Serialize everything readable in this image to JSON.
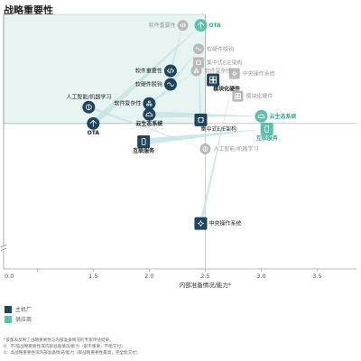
{
  "title": "战略重要性",
  "chart_data": {
    "type": "scatter",
    "title": "战略重要性",
    "xlabel": "内部准备情况/能力*",
    "ylabel": "",
    "xlim": [
      0.7,
      3.85
    ],
    "ylim": [
      0.4,
      3.2
    ],
    "x_ticks": [
      "0.0",
      "1.5",
      "2.0",
      "2.5",
      "3.0",
      "3.5"
    ],
    "x_tick_values": [
      1.0,
      1.5,
      2.0,
      2.5,
      3.0,
      3.5
    ],
    "grid": false,
    "axis_break": true,
    "quadrant": {
      "x_max": 2.5,
      "y_min": 2.0,
      "color": "#e7f4f1"
    },
    "legend_position": "bottom-left",
    "colors": {
      "oem": "#20455a",
      "supplier": "#5dbfae",
      "faded": "#b9b9b9",
      "arrow": "#c7e3e4"
    },
    "series": [
      {
        "name": "主机厂",
        "color": "#20455a",
        "points": [
          {
            "label": "OTA",
            "x": 1.5,
            "y": 2.0,
            "icon": "ota"
          },
          {
            "label": "云生态系统",
            "x": 2.0,
            "y": 2.1,
            "icon": "cloud"
          },
          {
            "label": "互联服务",
            "x": 1.95,
            "y": 1.8,
            "icon": "phone"
          },
          {
            "label": "模块化硬件",
            "x": 2.57,
            "y": 2.48,
            "icon": "module"
          },
          {
            "label": "集中式E/E架构",
            "x": 2.46,
            "y": 2.04,
            "icon": "chip"
          },
          {
            "label": "软件重要性",
            "x": 2.19,
            "y": 2.58,
            "icon": "code"
          },
          {
            "label": "软硬件脱钩",
            "x": 2.19,
            "y": 2.43,
            "icon": "decouple"
          },
          {
            "label": "人工智能/机器学习",
            "x": 1.46,
            "y": 2.18,
            "icon": "brain"
          },
          {
            "label": "软件复杂性",
            "x": 2.0,
            "y": 2.22,
            "icon": "complexity"
          },
          {
            "label": "中央操作系统",
            "x": 2.46,
            "y": 0.9,
            "icon": "os"
          }
        ]
      },
      {
        "name": "供应商",
        "color": "#5dbfae",
        "points": [
          {
            "label": "OTA",
            "x": 2.46,
            "y": 3.08,
            "icon": "ota"
          },
          {
            "label": "云生态系统",
            "x": 3.0,
            "y": 2.08,
            "icon": "cloud"
          },
          {
            "label": "互联服务",
            "x": 3.05,
            "y": 1.94,
            "icon": "phone"
          }
        ]
      },
      {
        "name": "",
        "color": "#b9b9b9",
        "points": [
          {
            "label": "软件重要性",
            "x": 2.3,
            "y": 3.08,
            "icon": "code"
          },
          {
            "label": "软硬件脱钩",
            "x": 2.44,
            "y": 2.82,
            "icon": "decouple"
          },
          {
            "label": "集中式E/E架构",
            "x": 2.44,
            "y": 2.67,
            "icon": "chip"
          },
          {
            "label": "软件复杂性",
            "x": 2.42,
            "y": 2.58,
            "icon": "complexity"
          },
          {
            "label": "中央操作系统",
            "x": 2.76,
            "y": 2.55,
            "icon": "os"
          },
          {
            "label": "模块化硬件",
            "x": 2.79,
            "y": 2.3,
            "icon": "module"
          },
          {
            "label": "人工智能/机器学习",
            "x": 2.5,
            "y": 1.72,
            "icon": "brain"
          }
        ]
      }
    ],
    "arrows": [
      {
        "from": [
          1.5,
          2.0
        ],
        "to": [
          2.46,
          3.08
        ],
        "width": 7
      },
      {
        "from": [
          2.0,
          2.1
        ],
        "to": [
          3.0,
          2.08
        ],
        "width": 7
      },
      {
        "from": [
          1.95,
          1.8
        ],
        "to": [
          3.05,
          1.94
        ],
        "width": 7
      },
      {
        "from": [
          2.19,
          2.58
        ],
        "to": [
          2.3,
          3.08
        ],
        "width": 3
      },
      {
        "from": [
          2.19,
          2.43
        ],
        "to": [
          2.44,
          2.82
        ],
        "width": 3
      },
      {
        "from": [
          2.46,
          2.04
        ],
        "to": [
          2.44,
          2.67
        ],
        "width": 3
      },
      {
        "from": [
          2.0,
          2.22
        ],
        "to": [
          2.42,
          2.58
        ],
        "width": 3
      },
      {
        "from": [
          2.46,
          0.9
        ],
        "to": [
          2.76,
          2.55
        ],
        "width": 3
      },
      {
        "from": [
          2.57,
          2.48
        ],
        "to": [
          2.79,
          2.3
        ],
        "width": 3
      },
      {
        "from": [
          1.46,
          2.18
        ],
        "to": [
          2.5,
          1.72
        ],
        "width": 3
      }
    ]
  },
  "legend": [
    {
      "label": "主机厂",
      "color": "#20455a"
    },
    {
      "label": "供应商",
      "color": "#5dbfae"
    }
  ],
  "footnotes": [
    "*该量表反映了战略重要性与内部准备情况的专家评估结果。",
    "  0：不/低战略重要性或内部准备情况/能力（即不重要，不能交付）",
    "  4：高战略重要性或内部准备情况/能力（即战略重要性最高，完全能交付）"
  ]
}
